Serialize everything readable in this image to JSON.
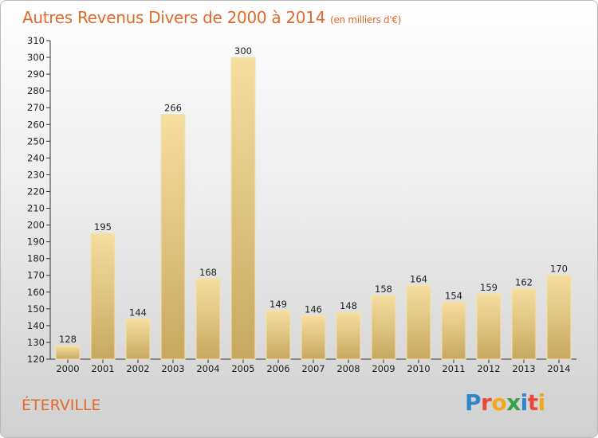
{
  "title": "Autres Revenus Divers de 2000 à 2014",
  "subtitle": "(en milliers d'€)",
  "commune": "ÉTERVILLE",
  "logo": {
    "letters": [
      "P",
      "r",
      "o",
      "x",
      "i",
      "t",
      "i"
    ],
    "colors": [
      "#2f86c8",
      "#e64a3b",
      "#f2a81d",
      "#3aa04a",
      "#2f86c8",
      "#e64a3b",
      "#f2a81d"
    ]
  },
  "chart_data": {
    "type": "bar",
    "title": "Autres Revenus Divers de 2000 à 2014",
    "subtitle": "(en milliers d'€)",
    "categories": [
      "2000",
      "2001",
      "2002",
      "2003",
      "2004",
      "2005",
      "2006",
      "2007",
      "2008",
      "2009",
      "2010",
      "2011",
      "2012",
      "2013",
      "2014"
    ],
    "values": [
      128,
      195,
      144,
      266,
      168,
      300,
      149,
      146,
      148,
      158,
      164,
      154,
      159,
      162,
      170
    ],
    "ylim": [
      120,
      310
    ],
    "yticks": [
      120,
      130,
      140,
      150,
      160,
      170,
      180,
      190,
      200,
      210,
      220,
      230,
      240,
      250,
      260,
      270,
      280,
      290,
      300,
      310
    ],
    "grid": false,
    "bar_color": "#e9cd82"
  }
}
